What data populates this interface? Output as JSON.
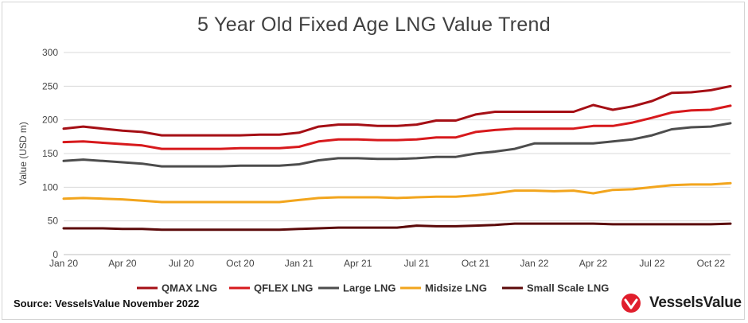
{
  "title": "5 Year Old Fixed Age LNG Value Trend",
  "source": "Source: VesselsValue November 2022",
  "brand": {
    "name": "VesselsValue",
    "logo_icon": "vesselsvalue-logo-icon",
    "logo_color": "#e01e2c"
  },
  "chart_data": {
    "type": "line",
    "title": "5 Year Old Fixed Age LNG Value Trend",
    "ylabel": "Value (USD m)",
    "xlabel": "",
    "ylim": [
      0,
      300
    ],
    "yticks": [
      0,
      50,
      100,
      150,
      200,
      250,
      300
    ],
    "grid": true,
    "legend_position": "bottom",
    "x_tick_labels": [
      "Jan 20",
      "Apr 20",
      "Jul 20",
      "Oct 20",
      "Jan 21",
      "Apr 21",
      "Jul 21",
      "Oct 21",
      "Jan 22",
      "Apr 22",
      "Jul 22",
      "Oct 22"
    ],
    "x": [
      "Jan 20",
      "Feb 20",
      "Mar 20",
      "Apr 20",
      "May 20",
      "Jun 20",
      "Jul 20",
      "Aug 20",
      "Sep 20",
      "Oct 20",
      "Nov 20",
      "Dec 20",
      "Jan 21",
      "Feb 21",
      "Mar 21",
      "Apr 21",
      "May 21",
      "Jun 21",
      "Jul 21",
      "Aug 21",
      "Sep 21",
      "Oct 21",
      "Nov 21",
      "Dec 21",
      "Jan 22",
      "Feb 22",
      "Mar 22",
      "Apr 22",
      "May 22",
      "Jun 22",
      "Jul 22",
      "Aug 22",
      "Sep 22",
      "Oct 22",
      "Nov 22"
    ],
    "series": [
      {
        "name": "QMAX LNG",
        "color": "#a50f15",
        "values": [
          187,
          190,
          187,
          184,
          182,
          177,
          177,
          177,
          177,
          177,
          178,
          178,
          181,
          190,
          193,
          193,
          191,
          191,
          193,
          199,
          199,
          208,
          212,
          212,
          212,
          212,
          212,
          222,
          215,
          220,
          228,
          240,
          241,
          244,
          250
        ]
      },
      {
        "name": "QFLEX LNG",
        "color": "#d7191c",
        "values": [
          167,
          168,
          166,
          164,
          162,
          157,
          157,
          157,
          157,
          158,
          158,
          158,
          160,
          168,
          171,
          171,
          170,
          170,
          171,
          174,
          174,
          182,
          185,
          187,
          187,
          187,
          187,
          191,
          191,
          196,
          203,
          211,
          214,
          215,
          221
        ]
      },
      {
        "name": "Large LNG",
        "color": "#4d4d4d",
        "values": [
          139,
          141,
          139,
          137,
          135,
          131,
          131,
          131,
          131,
          132,
          132,
          132,
          134,
          140,
          143,
          143,
          142,
          142,
          143,
          145,
          145,
          150,
          153,
          157,
          165,
          165,
          165,
          165,
          168,
          171,
          177,
          186,
          189,
          190,
          195
        ]
      },
      {
        "name": "Midsize LNG",
        "color": "#f2a51d",
        "values": [
          83,
          84,
          83,
          82,
          80,
          78,
          78,
          78,
          78,
          78,
          78,
          78,
          81,
          84,
          85,
          85,
          85,
          84,
          85,
          86,
          86,
          88,
          91,
          95,
          95,
          94,
          95,
          91,
          96,
          97,
          100,
          103,
          104,
          104,
          106
        ]
      },
      {
        "name": "Small Scale LNG",
        "color": "#5c0a0a",
        "values": [
          39,
          39,
          39,
          38,
          38,
          37,
          37,
          37,
          37,
          37,
          37,
          37,
          38,
          39,
          40,
          40,
          40,
          40,
          43,
          42,
          42,
          43,
          44,
          46,
          46,
          46,
          46,
          46,
          45,
          45,
          45,
          45,
          45,
          45,
          46
        ]
      }
    ]
  }
}
